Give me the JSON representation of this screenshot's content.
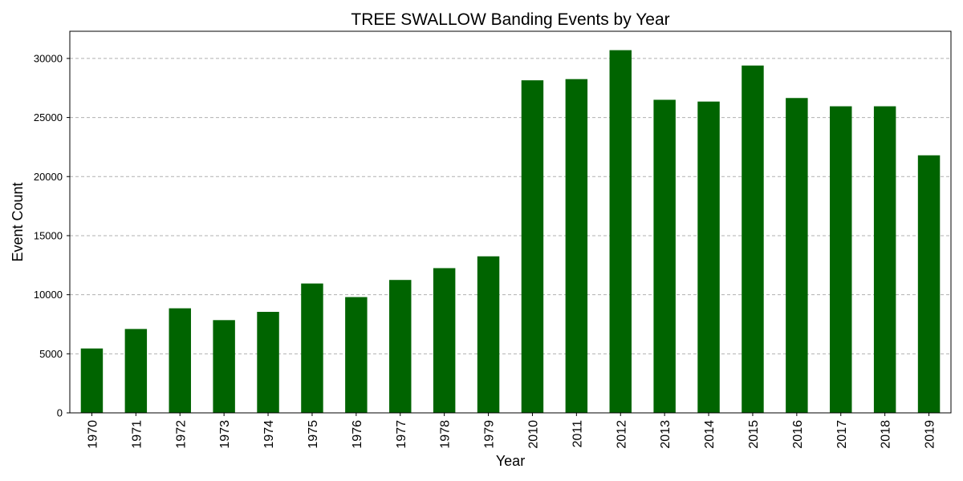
{
  "chart_data": {
    "type": "bar",
    "title": "TREE SWALLOW Banding Events by Year",
    "xlabel": "Year",
    "ylabel": "Event Count",
    "categories": [
      "1970",
      "1971",
      "1972",
      "1973",
      "1974",
      "1975",
      "1976",
      "1977",
      "1978",
      "1979",
      "2010",
      "2011",
      "2012",
      "2013",
      "2014",
      "2015",
      "2016",
      "2017",
      "2018",
      "2019"
    ],
    "values": [
      5450,
      7100,
      8850,
      7850,
      8550,
      10950,
      9800,
      11250,
      12250,
      13250,
      28150,
      28250,
      30700,
      26500,
      26350,
      29400,
      26650,
      25950,
      25950,
      21800
    ],
    "yticks": [
      0,
      5000,
      10000,
      15000,
      20000,
      25000,
      30000
    ],
    "ylim": [
      0,
      32300
    ],
    "grid": "y-dashed",
    "bar_color": "#006400"
  }
}
